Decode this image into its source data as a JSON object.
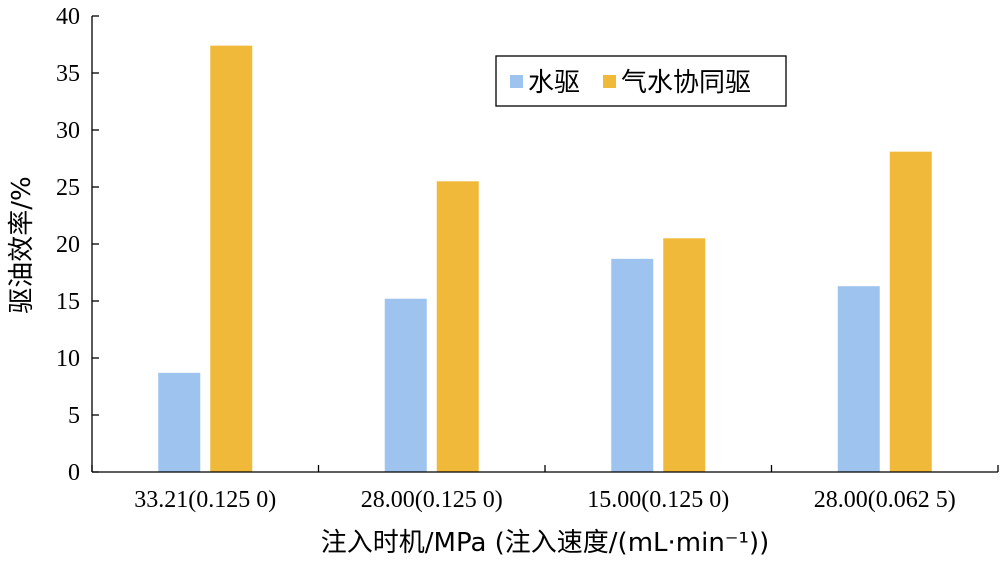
{
  "chart_data": {
    "type": "bar",
    "categories": [
      "33.21(0.125 0)",
      "28.00(0.125 0)",
      "15.00(0.125 0)",
      "28.00(0.062 5)"
    ],
    "series": [
      {
        "name": "水驱",
        "values": [
          8.7,
          15.2,
          18.7,
          16.3
        ],
        "color": "#9dc3ee"
      },
      {
        "name": "气水协同驱",
        "values": [
          37.4,
          25.5,
          20.5,
          28.1
        ],
        "color": "#f0b93a"
      }
    ],
    "title": "",
    "xlabel": "注入时机/MPa (注入速度/(mL·min⁻¹))",
    "ylabel": "驱油效率/%",
    "ylim": [
      0,
      40
    ],
    "yticks": [
      0,
      5,
      10,
      15,
      20,
      25,
      30,
      35,
      40
    ],
    "grid": false,
    "legend_position": "top-right"
  }
}
